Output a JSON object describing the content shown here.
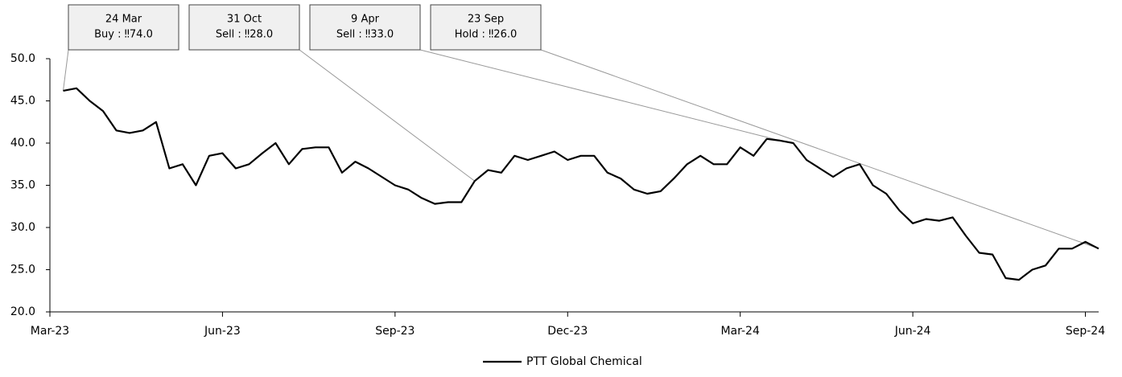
{
  "chart_data": {
    "type": "line",
    "categories": [
      "Mar-23",
      null,
      null,
      null,
      null,
      null,
      null,
      null,
      null,
      null,
      null,
      null,
      null,
      "Jun-23",
      null,
      null,
      null,
      null,
      null,
      null,
      null,
      null,
      null,
      null,
      null,
      null,
      "Sep-23",
      null,
      null,
      null,
      null,
      null,
      null,
      null,
      null,
      null,
      null,
      null,
      null,
      "Dec-23",
      null,
      null,
      null,
      null,
      null,
      null,
      null,
      null,
      null,
      null,
      null,
      null,
      "Mar-24",
      null,
      null,
      null,
      null,
      null,
      null,
      null,
      null,
      null,
      null,
      null,
      null,
      "Jun-24",
      null,
      null,
      null,
      null,
      null,
      null,
      null,
      null,
      null,
      null,
      null,
      null,
      "Sep-24",
      null
    ],
    "series": [
      {
        "name": "PTT Global Chemical",
        "color": "#000000",
        "values": [
          null,
          46.2,
          46.5,
          45.0,
          43.8,
          41.5,
          41.2,
          41.5,
          42.5,
          37.0,
          37.5,
          35.0,
          38.5,
          38.8,
          37.0,
          37.5,
          38.8,
          40.0,
          37.5,
          39.3,
          39.5,
          39.5,
          36.5,
          37.8,
          37.0,
          36.0,
          35.0,
          34.5,
          33.5,
          32.8,
          33.0,
          33.0,
          35.5,
          36.8,
          36.5,
          38.5,
          38.0,
          38.5,
          39.0,
          38.0,
          38.5,
          38.5,
          36.5,
          35.8,
          34.5,
          34.0,
          34.3,
          35.8,
          37.5,
          38.5,
          37.5,
          37.5,
          39.5,
          38.5,
          40.5,
          40.3,
          40.0,
          38.0,
          37.0,
          36.0,
          37.0,
          37.5,
          35.0,
          34.0,
          32.0,
          30.5,
          31.0,
          30.8,
          31.2,
          29.0,
          27.0,
          26.8,
          24.0,
          23.8,
          25.0,
          25.5,
          27.5,
          27.5,
          28.3,
          27.5
        ]
      }
    ],
    "ylim": [
      20,
      50
    ],
    "yticks": [
      {
        "value": 20,
        "label": "20.0"
      },
      {
        "value": 25,
        "label": "25.0"
      },
      {
        "value": 30,
        "label": "30.0"
      },
      {
        "value": 35,
        "label": "35.0"
      },
      {
        "value": 40,
        "label": "40.0"
      },
      {
        "value": 45,
        "label": "45.0"
      },
      {
        "value": 50,
        "label": "50.0"
      }
    ],
    "grid": false,
    "legend": "bottom",
    "annotations": [
      {
        "date": "24 Mar",
        "text": "Buy : ‼74.0"
      },
      {
        "date": "31 Oct",
        "text": "Sell : ‼28.0"
      },
      {
        "date": "9 Apr",
        "text": "Sell : ‼33.0"
      },
      {
        "date": "23 Sep",
        "text": "Hold : ‼26.0"
      }
    ]
  }
}
